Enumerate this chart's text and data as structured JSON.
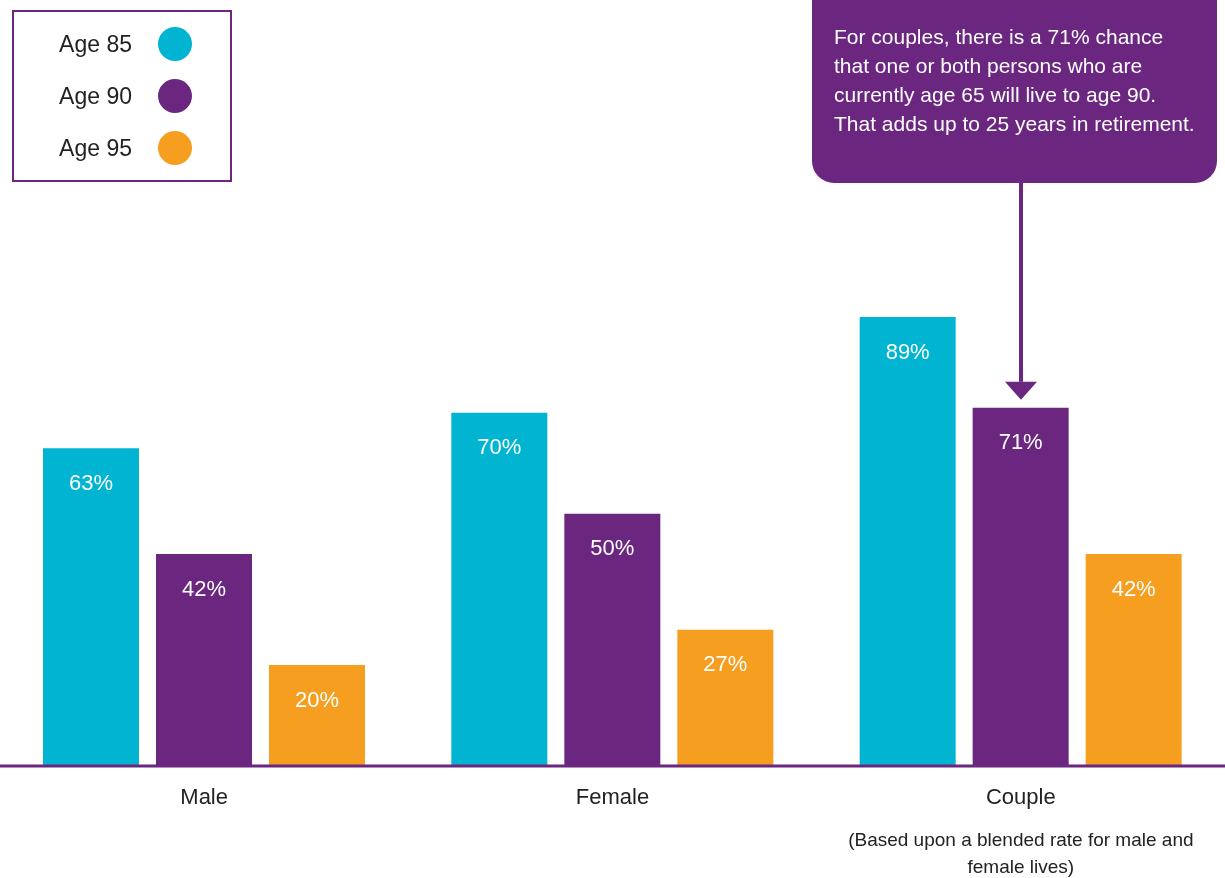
{
  "chart_data": {
    "type": "bar",
    "categories": [
      "Male",
      "Female",
      "Couple"
    ],
    "series": [
      {
        "name": "Age 85",
        "color": "#00b4d2",
        "values": [
          63,
          70,
          89
        ],
        "value_labels": [
          "63%",
          "70%",
          "89%"
        ]
      },
      {
        "name": "Age 90",
        "color": "#6b2780",
        "values": [
          42,
          50,
          71
        ],
        "value_labels": [
          "42%",
          "50%",
          "71%"
        ]
      },
      {
        "name": "Age 95",
        "color": "#f59e1f",
        "values": [
          20,
          27,
          42
        ],
        "value_labels": [
          "20%",
          "27%",
          "42%"
        ]
      }
    ],
    "legend": "top left",
    "annotations": [
      "For couples, there is a 71% chance that one or both persons who are currently age 65 will live to age 90. That adds up to 25 years in retirement.",
      "(Based upon a blended rate for male and female lives)"
    ]
  }
}
